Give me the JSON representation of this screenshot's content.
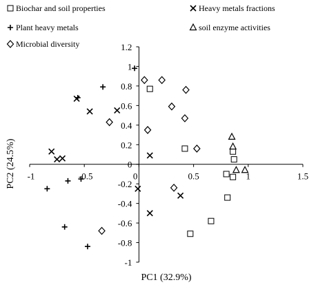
{
  "chart_data": {
    "type": "scatter",
    "xlabel": "PC1 (32.9%)",
    "ylabel": "PC2 (24.5%)",
    "xlim": [
      -1,
      1.5
    ],
    "ylim": [
      -1,
      1.2
    ],
    "x_ticks": [
      -1,
      -0.5,
      0,
      0.5,
      1,
      1.5
    ],
    "x_tick_labels": [
      "-1",
      "-0.5",
      "0",
      "0.5",
      "1",
      "1.5"
    ],
    "y_ticks": [
      -1,
      -0.8,
      -0.6,
      -0.4,
      -0.2,
      0,
      0.2,
      0.4,
      0.6,
      0.8,
      1,
      1.2
    ],
    "y_tick_labels": [
      "-1",
      "-0.8",
      "-0.6",
      "-0.4",
      "-0.2",
      "0",
      "0.2",
      "0.4",
      "0.6",
      "0.8",
      "1",
      "1.2"
    ],
    "grid": false,
    "legend_position": "top",
    "series": [
      {
        "name": "Biochar and soil properties",
        "marker": "square",
        "points": [
          [
            0.1,
            0.77
          ],
          [
            0.42,
            0.16
          ],
          [
            0.86,
            0.13
          ],
          [
            0.87,
            0.05
          ],
          [
            0.8,
            -0.1
          ],
          [
            0.86,
            -0.13
          ],
          [
            0.81,
            -0.34
          ],
          [
            0.66,
            -0.58
          ],
          [
            0.47,
            -0.71
          ]
        ]
      },
      {
        "name": "Heavy metals fractions",
        "marker": "x",
        "points": [
          [
            -0.57,
            0.67
          ],
          [
            -0.45,
            0.54
          ],
          [
            -0.2,
            0.55
          ],
          [
            -0.8,
            0.13
          ],
          [
            -0.75,
            0.05
          ],
          [
            -0.7,
            0.06
          ],
          [
            -0.01,
            -0.25
          ],
          [
            0.1,
            0.09
          ],
          [
            0.38,
            -0.32
          ],
          [
            0.1,
            -0.5
          ]
        ]
      },
      {
        "name": "Plant heavy metals",
        "marker": "plus",
        "points": [
          [
            -0.04,
            0.98
          ],
          [
            -0.33,
            0.79
          ],
          [
            -0.56,
            0.68
          ],
          [
            -0.53,
            -0.15
          ],
          [
            -0.65,
            -0.17
          ],
          [
            -0.84,
            -0.25
          ],
          [
            -0.68,
            -0.64
          ],
          [
            -0.47,
            -0.84
          ]
        ]
      },
      {
        "name": "soil enzyme activities",
        "marker": "triangle",
        "points": [
          [
            0.85,
            0.28
          ],
          [
            0.86,
            0.18
          ],
          [
            0.89,
            -0.06
          ],
          [
            0.97,
            -0.06
          ]
        ]
      },
      {
        "name": "Microbial diversity",
        "marker": "diamond",
        "points": [
          [
            0.05,
            0.86
          ],
          [
            0.21,
            0.86
          ],
          [
            0.43,
            0.76
          ],
          [
            0.3,
            0.59
          ],
          [
            0.42,
            0.47
          ],
          [
            -0.27,
            0.43
          ],
          [
            0.08,
            0.35
          ],
          [
            0.53,
            0.16
          ],
          [
            0.32,
            -0.24
          ],
          [
            -0.34,
            -0.68
          ]
        ]
      }
    ]
  }
}
